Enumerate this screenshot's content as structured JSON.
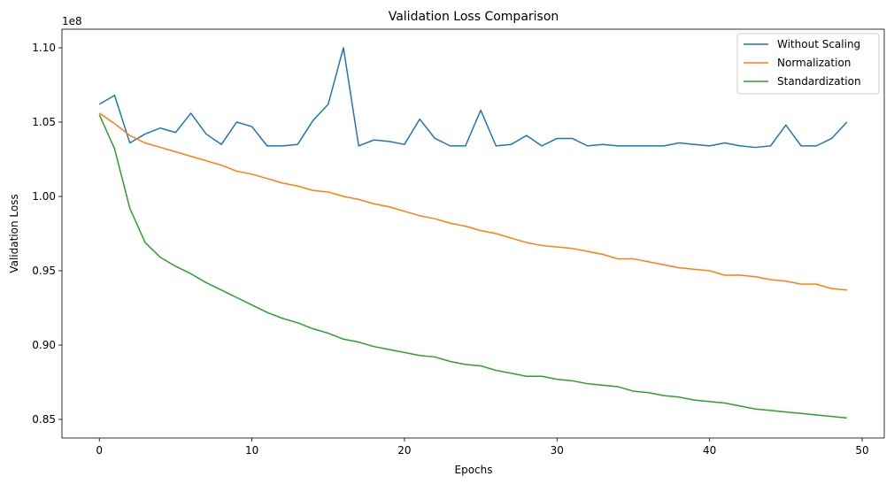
{
  "chart_data": {
    "type": "line",
    "title": "Validation Loss Comparison",
    "xlabel": "Epochs",
    "ylabel": "Validation Loss",
    "y_offset_label": "1e8",
    "xlim": [
      -2.45,
      51.45
    ],
    "ylim": [
      0.8375,
      1.1125
    ],
    "xticks": [
      0,
      10,
      20,
      30,
      40,
      50
    ],
    "yticks": [
      0.85,
      0.9,
      0.95,
      1.0,
      1.05,
      1.1
    ],
    "ytick_labels": [
      "0.85",
      "0.90",
      "0.95",
      "1.00",
      "1.05",
      "1.10"
    ],
    "grid": false,
    "legend_position": "top-right",
    "x": [
      0,
      1,
      2,
      3,
      4,
      5,
      6,
      7,
      8,
      9,
      10,
      11,
      12,
      13,
      14,
      15,
      16,
      17,
      18,
      19,
      20,
      21,
      22,
      23,
      24,
      25,
      26,
      27,
      28,
      29,
      30,
      31,
      32,
      33,
      34,
      35,
      36,
      37,
      38,
      39,
      40,
      41,
      42,
      43,
      44,
      45,
      46,
      47,
      48,
      49
    ],
    "series": [
      {
        "name": "Without Scaling",
        "color": "#1f77b4",
        "values": [
          1.062,
          1.068,
          1.036,
          1.042,
          1.046,
          1.043,
          1.056,
          1.042,
          1.035,
          1.05,
          1.047,
          1.034,
          1.034,
          1.035,
          1.051,
          1.062,
          1.1,
          1.034,
          1.038,
          1.037,
          1.035,
          1.052,
          1.039,
          1.034,
          1.034,
          1.058,
          1.034,
          1.035,
          1.041,
          1.034,
          1.039,
          1.039,
          1.034,
          1.035,
          1.034,
          1.034,
          1.034,
          1.034,
          1.036,
          1.035,
          1.034,
          1.036,
          1.034,
          1.033,
          1.034,
          1.048,
          1.034,
          1.034,
          1.039,
          1.05
        ]
      },
      {
        "name": "Normalization",
        "color": "#ff7f0e",
        "values": [
          1.056,
          1.049,
          1.041,
          1.036,
          1.033,
          1.03,
          1.027,
          1.024,
          1.021,
          1.017,
          1.015,
          1.012,
          1.009,
          1.007,
          1.004,
          1.003,
          1.0,
          0.998,
          0.995,
          0.993,
          0.99,
          0.987,
          0.985,
          0.982,
          0.98,
          0.977,
          0.975,
          0.972,
          0.969,
          0.967,
          0.966,
          0.965,
          0.963,
          0.961,
          0.958,
          0.958,
          0.956,
          0.954,
          0.952,
          0.951,
          0.95,
          0.947,
          0.947,
          0.946,
          0.944,
          0.943,
          0.941,
          0.941,
          0.938,
          0.937
        ]
      },
      {
        "name": "Standardization",
        "color": "#2ca02c",
        "values": [
          1.055,
          1.032,
          0.992,
          0.969,
          0.959,
          0.953,
          0.948,
          0.942,
          0.937,
          0.932,
          0.927,
          0.922,
          0.918,
          0.915,
          0.911,
          0.908,
          0.904,
          0.902,
          0.899,
          0.897,
          0.895,
          0.893,
          0.892,
          0.889,
          0.887,
          0.886,
          0.883,
          0.881,
          0.879,
          0.879,
          0.877,
          0.876,
          0.874,
          0.873,
          0.872,
          0.869,
          0.868,
          0.866,
          0.865,
          0.863,
          0.862,
          0.861,
          0.859,
          0.857,
          0.856,
          0.855,
          0.854,
          0.853,
          0.852,
          0.851
        ]
      }
    ]
  }
}
